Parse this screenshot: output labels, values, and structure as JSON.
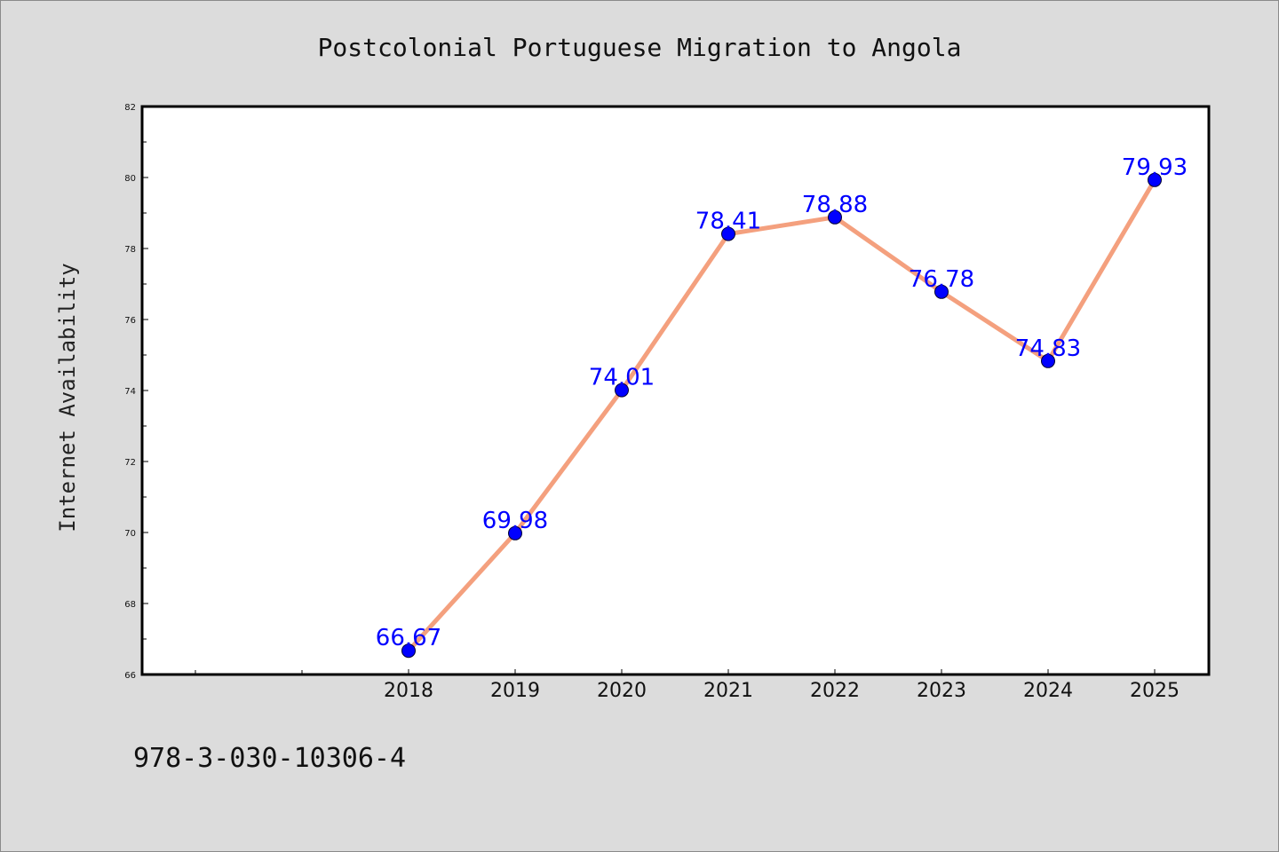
{
  "footer": {
    "isbn": "978-3-030-10306-4"
  },
  "colors": {
    "background": "#dcdcdc",
    "line": "#f4a07e",
    "marker": "#0000ff",
    "label": "#0000ff"
  },
  "chart_data": {
    "type": "line",
    "title": "Postcolonial Portuguese Migration to Angola",
    "xlabel": "",
    "ylabel": "Internet Availability",
    "categories": [
      "2018",
      "2019",
      "2020",
      "2021",
      "2022",
      "2023",
      "2024",
      "2025"
    ],
    "values": [
      66.67,
      69.98,
      74.01,
      78.41,
      78.88,
      76.78,
      74.83,
      79.93
    ],
    "value_labels": [
      "66.67",
      "69.98",
      "74.01",
      "78.41",
      "78.88",
      "76.78",
      "74.83",
      "79.93"
    ],
    "ylim": [
      66,
      82
    ],
    "yticks": [
      66,
      68,
      70,
      72,
      74,
      76,
      78,
      80,
      82
    ],
    "ytick_labels": [
      "66",
      "68",
      "70",
      "72",
      "74",
      "76",
      "78",
      "80",
      "82"
    ],
    "grid": false,
    "legend": "none"
  }
}
